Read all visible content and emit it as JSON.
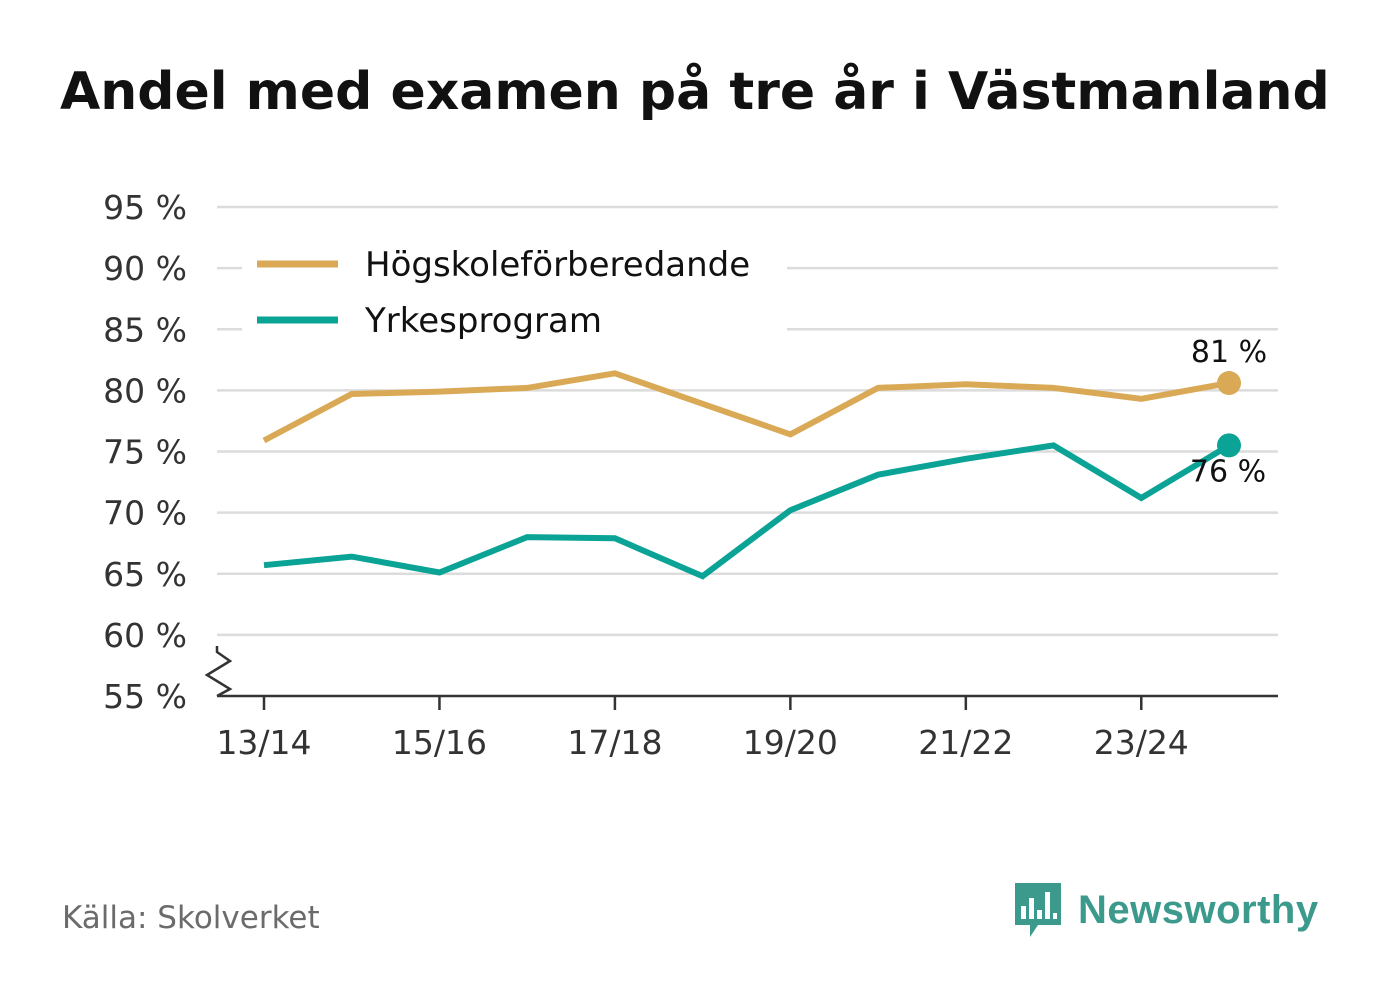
{
  "title": "Andel med examen på tre år i Västmanland",
  "source": "Källa: Skolverket",
  "brand": "Newsworthy",
  "colors": {
    "series_a": "#d9a956",
    "series_b": "#0aa396",
    "grid": "#dcdcdc",
    "axis": "#333333",
    "brand": "#3c9a8c"
  },
  "chart_data": {
    "type": "line",
    "title": "Andel med examen på tre år i Västmanland",
    "x": [
      "13/14",
      "14/15",
      "15/16",
      "16/17",
      "17/18",
      "18/19",
      "19/20",
      "20/21",
      "21/22",
      "22/23",
      "23/24",
      "24/25"
    ],
    "x_tick_labels": [
      "13/14",
      "15/16",
      "17/18",
      "19/20",
      "21/22",
      "23/24"
    ],
    "y_tick_labels": [
      "55 %",
      "60 %",
      "65 %",
      "70 %",
      "75 %",
      "80 %",
      "85 %",
      "90 %",
      "95 %"
    ],
    "y_ticks": [
      55,
      60,
      65,
      70,
      75,
      80,
      85,
      90,
      95
    ],
    "ylim": [
      55,
      95
    ],
    "axis_break": true,
    "series": [
      {
        "name": "Högskoleförberedande",
        "values": [
          75.9,
          79.7,
          79.9,
          80.2,
          81.4,
          78.9,
          76.4,
          80.2,
          80.5,
          80.2,
          79.3,
          80.6
        ],
        "end_label": "81 %"
      },
      {
        "name": "Yrkesprogram",
        "values": [
          65.7,
          66.4,
          65.1,
          68.0,
          67.9,
          64.8,
          70.2,
          73.1,
          74.4,
          75.5,
          71.2,
          75.5
        ],
        "end_label": "76 %"
      }
    ],
    "legend_position": "top-left"
  }
}
